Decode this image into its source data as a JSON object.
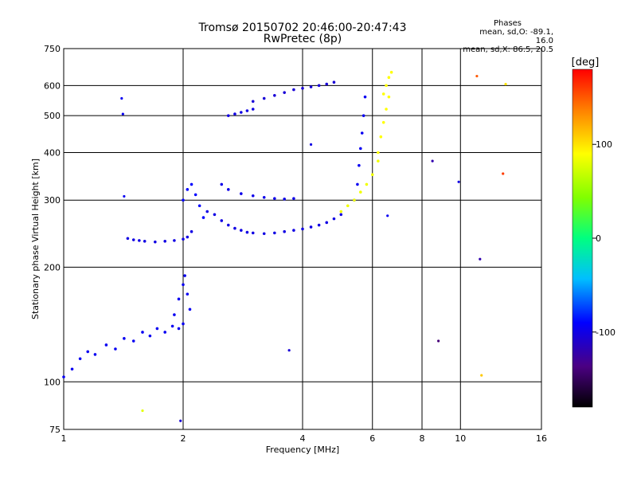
{
  "chart_data": {
    "type": "scatter",
    "title": "Tromsø 20150702 20:46:00-20:47:43",
    "subtitle": "RwPretec (8p)",
    "xlabel": "Frequency [MHz]",
    "ylabel": "Stationary phase Virtual Height [km]",
    "x_scale": "log",
    "y_scale": "log",
    "xlim": [
      1,
      16
    ],
    "ylim": [
      75,
      750
    ],
    "x_ticks": [
      1,
      2,
      4,
      6,
      8,
      10,
      16
    ],
    "x_ticklabels": [
      "1",
      "2",
      "4",
      "6",
      "8",
      "10",
      "16"
    ],
    "x_gridlines": [
      2,
      4,
      6,
      8,
      10
    ],
    "y_ticks": [
      75,
      100,
      200,
      300,
      400,
      500,
      600,
      750
    ],
    "y_ticklabels": [
      "75",
      "100",
      "200",
      "300",
      "400",
      "500",
      "600",
      "750"
    ],
    "y_gridlines": [
      100,
      200,
      300,
      400,
      500,
      600
    ],
    "grid": true,
    "colorbar": {
      "unit": "[deg]",
      "range": [
        -180,
        180
      ],
      "ticks": [
        100,
        0,
        -100
      ],
      "ticklabels": [
        "100",
        "0",
        "-100"
      ]
    },
    "phases": {
      "heading": "Phases",
      "line1": "mean, sd,O: -89.1, 16.0",
      "line2": "mean, sd,X: 86.5, 20.5"
    },
    "traces": [
      {
        "phase": -95,
        "x": [
          1.0,
          1.05,
          1.1,
          1.15,
          1.2,
          1.28,
          1.35,
          1.42,
          1.5,
          1.58,
          1.65,
          1.72,
          1.8,
          1.88,
          1.95,
          2.0
        ],
        "y": [
          103,
          108,
          115,
          120,
          118,
          125,
          122,
          130,
          128,
          135,
          132,
          138,
          135,
          140,
          138,
          142
        ]
      },
      {
        "phase": -100,
        "x": [
          1.45,
          1.5,
          1.55,
          1.6,
          1.7,
          1.8,
          1.9,
          2.0,
          2.05,
          2.1
        ],
        "y": [
          238,
          236,
          235,
          234,
          233,
          234,
          235,
          237,
          240,
          248
        ]
      },
      {
        "phase": -95,
        "x": [
          1.9,
          1.95,
          2.0,
          2.02,
          2.05,
          2.08
        ],
        "y": [
          150,
          165,
          180,
          190,
          170,
          155
        ]
      },
      {
        "phase": -90,
        "x": [
          2.0,
          2.05,
          2.1,
          2.15,
          2.2,
          2.25
        ],
        "y": [
          300,
          320,
          330,
          310,
          290,
          270
        ]
      },
      {
        "phase": -100,
        "x": [
          2.3,
          2.4,
          2.5,
          2.6,
          2.7,
          2.8,
          2.9,
          3.0,
          3.2,
          3.4,
          3.6,
          3.8,
          4.0,
          4.2,
          4.4,
          4.6,
          4.8,
          5.0
        ],
        "y": [
          280,
          275,
          265,
          258,
          253,
          250,
          247,
          246,
          245,
          246,
          248,
          250,
          252,
          255,
          258,
          262,
          268,
          275
        ]
      },
      {
        "phase": -98,
        "x": [
          2.5,
          2.6,
          2.8,
          3.0,
          3.2,
          3.4,
          3.6,
          3.8
        ],
        "y": [
          330,
          320,
          312,
          308,
          305,
          303,
          302,
          303
        ]
      },
      {
        "phase": -105,
        "x": [
          3.0,
          3.2,
          3.4,
          3.6,
          3.8,
          4.0,
          4.2,
          4.4,
          4.6,
          4.8
        ],
        "y": [
          545,
          555,
          565,
          575,
          585,
          590,
          595,
          600,
          605,
          612
        ]
      },
      {
        "phase": -100,
        "x": [
          2.6,
          2.7,
          2.8,
          2.9,
          3.0
        ],
        "y": [
          500,
          505,
          510,
          515,
          520
        ]
      },
      {
        "phase": -95,
        "x": [
          5.4,
          5.5,
          5.55,
          5.6,
          5.65,
          5.7,
          5.75
        ],
        "y": [
          300,
          330,
          370,
          410,
          450,
          500,
          560
        ]
      },
      {
        "phase": 85,
        "x": [
          5.0,
          5.2,
          5.4,
          5.6,
          5.8,
          6.0,
          6.2
        ],
        "y": [
          280,
          290,
          300,
          315,
          330,
          350,
          380
        ]
      },
      {
        "phase": 90,
        "x": [
          6.2,
          6.3,
          6.4,
          6.5,
          6.6
        ],
        "y": [
          400,
          440,
          480,
          520,
          560
        ]
      },
      {
        "phase": 90,
        "x": [
          6.4,
          6.5,
          6.6,
          6.7
        ],
        "y": [
          570,
          600,
          630,
          650
        ]
      }
    ],
    "outliers": [
      {
        "x": 1.4,
        "y": 555,
        "phase": -95
      },
      {
        "x": 1.41,
        "y": 505,
        "phase": -95
      },
      {
        "x": 1.42,
        "y": 307,
        "phase": -95
      },
      {
        "x": 1.58,
        "y": 84,
        "phase": 80
      },
      {
        "x": 1.97,
        "y": 79,
        "phase": -105
      },
      {
        "x": 3.7,
        "y": 121,
        "phase": -105
      },
      {
        "x": 4.2,
        "y": 420,
        "phase": -100
      },
      {
        "x": 6.55,
        "y": 273,
        "phase": -95
      },
      {
        "x": 8.5,
        "y": 380,
        "phase": -120
      },
      {
        "x": 8.8,
        "y": 128,
        "phase": -140
      },
      {
        "x": 9.9,
        "y": 335,
        "phase": -100
      },
      {
        "x": 11.0,
        "y": 635,
        "phase": 150
      },
      {
        "x": 11.2,
        "y": 210,
        "phase": -120
      },
      {
        "x": 11.3,
        "y": 104,
        "phase": 110
      },
      {
        "x": 12.8,
        "y": 352,
        "phase": 160
      },
      {
        "x": 13.0,
        "y": 605,
        "phase": 100
      }
    ]
  }
}
